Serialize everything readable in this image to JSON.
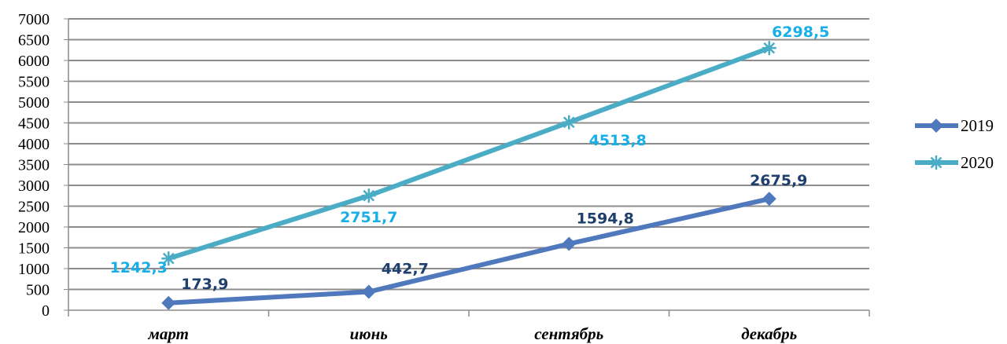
{
  "chart_data": {
    "type": "line",
    "categories": [
      "март",
      "июнь",
      "сентябрь",
      "декабрь"
    ],
    "series": [
      {
        "name": "2019",
        "values": [
          173.9,
          442.7,
          1594.8,
          2675.9
        ],
        "labels": [
          "173,9",
          "442,7",
          "1594,8",
          "2675,9"
        ],
        "color": "#4F78BD",
        "label_color": "#1F3F6E",
        "marker": "diamond"
      },
      {
        "name": "2020",
        "values": [
          1242.3,
          2751.7,
          4513.8,
          6298.5
        ],
        "labels": [
          "1242,3",
          "2751,7",
          "4513,8",
          "6298,5"
        ],
        "color": "#4BACC6",
        "label_color": "#18AEE8",
        "marker": "star"
      }
    ],
    "ylim": [
      0,
      7000
    ],
    "yticks": [
      0,
      500,
      1000,
      1500,
      2000,
      2500,
      3000,
      3500,
      4000,
      4500,
      5000,
      5500,
      6000,
      6500,
      7000
    ],
    "grid": true,
    "legend": "right"
  }
}
